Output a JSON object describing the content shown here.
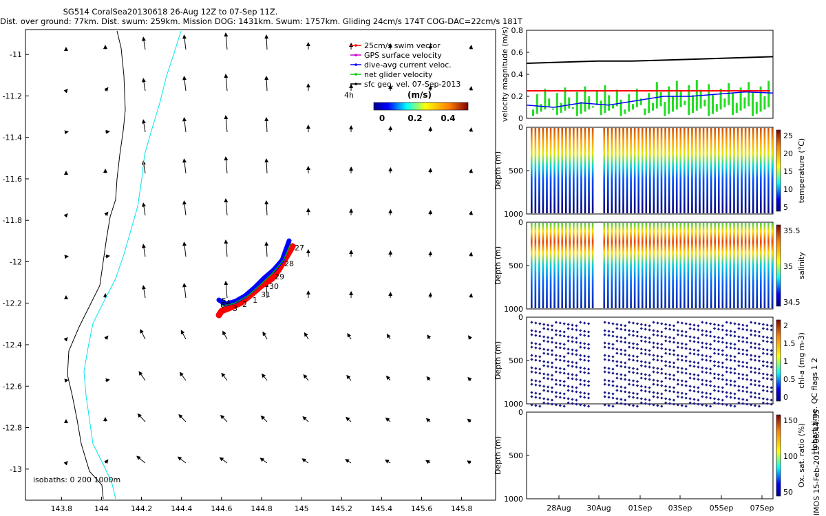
{
  "header": {
    "line1": "SG514 CoralSea20130618 26-Aug 12Z to 07-Sep 11Z.",
    "line2": "Dist. over ground: 77km. Dist. swum: 259km. Mission DOG: 1431km. Swum: 1757km. Gliding 24cm/s 174T COG-DAC=22cm/s 181T"
  },
  "map": {
    "x_ticks": [
      "143.8",
      "144",
      "144.2",
      "144.4",
      "144.6",
      "144.8",
      "145",
      "145.2",
      "145.4",
      "145.6",
      "145.8"
    ],
    "y_ticks": [
      "-11",
      "-11.2",
      "-11.4",
      "-11.6",
      "-11.8",
      "-12",
      "-12.2",
      "-12.4",
      "-12.6",
      "-12.8",
      "-13"
    ],
    "x_range": [
      143.62,
      145.97
    ],
    "y_range": [
      -13.15,
      -10.88
    ],
    "isobaths_label": "isobaths: 0   200  1000m",
    "legend": [
      {
        "label": "25cm/s swim vector",
        "color": "#ff0000"
      },
      {
        "label": "GPS surface velocity",
        "color": "#cc00cc"
      },
      {
        "label": "dive-avg current veloc.",
        "color": "#0000ff"
      },
      {
        "label": "net glider velocity",
        "color": "#00cc00"
      },
      {
        "label": "sfc geo. vel. 07-Sep-2013",
        "color": "#000000"
      }
    ],
    "scale_label": "4h",
    "colorbar": {
      "title": "(m/s)",
      "ticks": [
        "0",
        "0.2",
        "0.4"
      ]
    },
    "track_day_labels": [
      "27",
      "28",
      "29",
      "30",
      "31",
      "1",
      "2",
      "3",
      "4",
      "5",
      "6"
    ]
  },
  "chart_data": [
    {
      "type": "line",
      "title": "velocity magnitude (m/s)",
      "ylabel": "velocity magnitude (m/s)",
      "ylim": [
        0,
        0.8
      ],
      "y_ticks": [
        "0",
        "0.2",
        "0.4",
        "0.6",
        "0.8"
      ],
      "x_ticks": [
        "28Aug",
        "30Aug",
        "01Sep",
        "03Sep",
        "05Sep",
        "07Sep"
      ],
      "series": [
        {
          "name": "sfc geo. vel.",
          "color": "#000000",
          "values": [
            0.5,
            0.51,
            0.52,
            0.52,
            0.53,
            0.54,
            0.55,
            0.56
          ]
        },
        {
          "name": "25cm/s swim",
          "color": "#ff0000",
          "values": [
            0.25,
            0.25
          ]
        },
        {
          "name": "dive-avg current",
          "color": "#0000ff",
          "values": [
            0.12,
            0.1,
            0.14,
            0.12,
            0.16,
            0.2,
            0.2,
            0.22,
            0.24,
            0.23
          ]
        }
      ]
    },
    {
      "type": "scatter",
      "ylabel": "Depth (m)",
      "y_ticks": [
        "0",
        "500",
        "1000"
      ],
      "colorbar_label": "temperature (°C)",
      "colorbar_ticks": [
        "5",
        "10",
        "15",
        "20",
        "25"
      ]
    },
    {
      "type": "scatter",
      "ylabel": "Depth (m)",
      "y_ticks": [
        "0",
        "500",
        "1000"
      ],
      "colorbar_label": "salinity",
      "colorbar_ticks": [
        "34.5",
        "35",
        "35.5"
      ]
    },
    {
      "type": "scatter",
      "ylabel": "Depth (m)",
      "y_ticks": [
        "0",
        "500",
        "1000"
      ],
      "colorbar_label": "chl-a (mg m-3)",
      "colorbar_ticks": [
        "0",
        "0.5",
        "1",
        "1.5",
        "2"
      ]
    },
    {
      "type": "scatter",
      "ylabel": "Depth (m)",
      "y_ticks": [
        "0",
        "500",
        "1000"
      ],
      "colorbar_label": "Ox. sat. ratio (%)",
      "colorbar_ticks": [
        "50",
        "100",
        "150"
      ]
    }
  ],
  "side_text": {
    "qc_flags": "Hobart time. QC flags 1  2",
    "copyright": "© IMOS 15-Feb-2019 06:44:35"
  }
}
